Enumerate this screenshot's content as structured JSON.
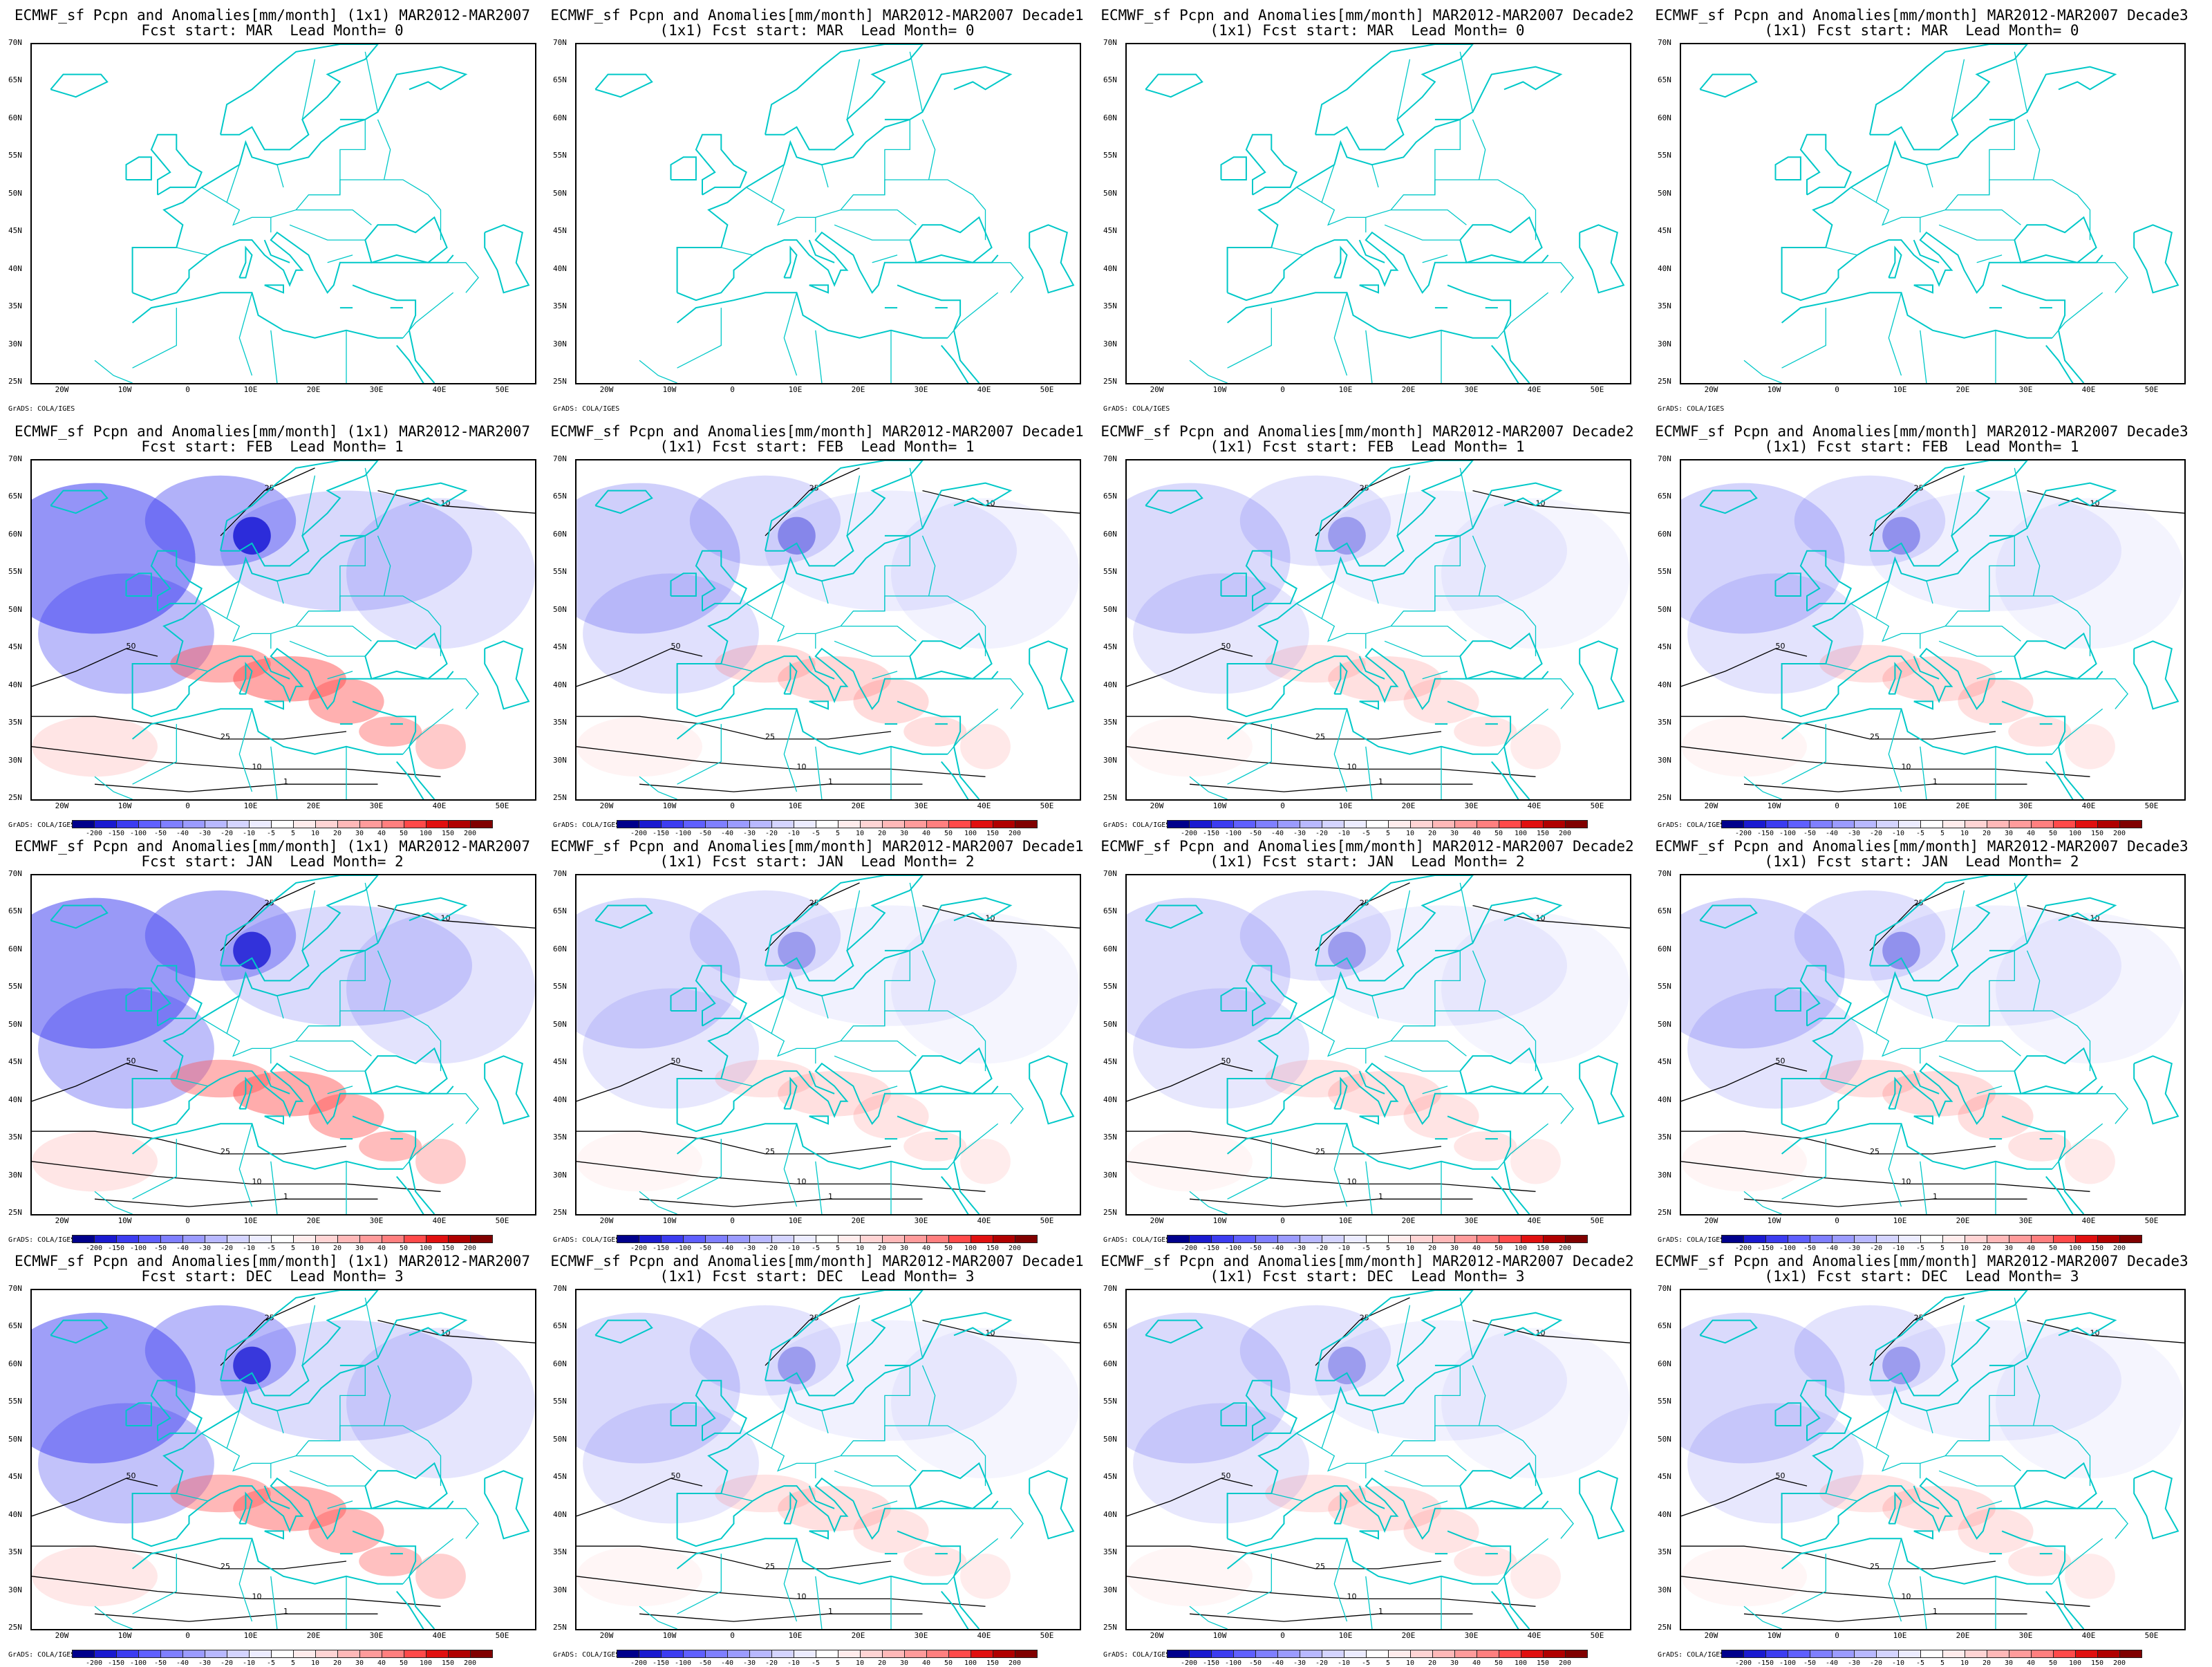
{
  "rows": [
    {
      "panels": [
        {
          "title1": "ECMWF_sf Pcpn and Anomalies[mm/month] (1x1) MAR2012-MAR2007",
          "title2": "Fcst start: MAR  Lead Month= 0",
          "intensity": 0
        },
        {
          "title1": "ECMWF_sf Pcpn and Anomalies[mm/month] MAR2012-MAR2007 Decade1",
          "title2": "(1x1) Fcst start: MAR  Lead Month= 0",
          "intensity": 0
        },
        {
          "title1": "ECMWF_sf Pcpn and Anomalies[mm/month] MAR2012-MAR2007 Decade2",
          "title2": "(1x1) Fcst start: MAR  Lead Month= 0",
          "intensity": 0
        },
        {
          "title1": "ECMWF_sf Pcpn and Anomalies[mm/month] MAR2012-MAR2007 Decade3",
          "title2": "(1x1) Fcst start: MAR  Lead Month= 0",
          "intensity": 0
        }
      ],
      "show_colorbar": false
    },
    {
      "panels": [
        {
          "title1": "ECMWF_sf Pcpn and Anomalies[mm/month] (1x1) MAR2012-MAR2007",
          "title2": "Fcst start: FEB  Lead Month= 1",
          "intensity": 1.0
        },
        {
          "title1": "ECMWF_sf Pcpn and Anomalies[mm/month] MAR2012-MAR2007 Decade1",
          "title2": "(1x1) Fcst start: FEB  Lead Month= 1",
          "intensity": 0.45
        },
        {
          "title1": "ECMWF_sf Pcpn and Anomalies[mm/month] MAR2012-MAR2007 Decade2",
          "title2": "(1x1) Fcst start: FEB  Lead Month= 1",
          "intensity": 0.35
        },
        {
          "title1": "ECMWF_sf Pcpn and Anomalies[mm/month] MAR2012-MAR2007 Decade3",
          "title2": "(1x1) Fcst start: FEB  Lead Month= 1",
          "intensity": 0.4
        }
      ],
      "show_colorbar": true
    },
    {
      "panels": [
        {
          "title1": "ECMWF_sf Pcpn and Anomalies[mm/month] (1x1) MAR2012-MAR2007",
          "title2": "Fcst start: JAN  Lead Month= 2",
          "intensity": 0.95
        },
        {
          "title1": "ECMWF_sf Pcpn and Anomalies[mm/month] MAR2012-MAR2007 Decade1",
          "title2": "(1x1) Fcst start: JAN  Lead Month= 2",
          "intensity": 0.35
        },
        {
          "title1": "ECMWF_sf Pcpn and Anomalies[mm/month] MAR2012-MAR2007 Decade2",
          "title2": "(1x1) Fcst start: JAN  Lead Month= 2",
          "intensity": 0.35
        },
        {
          "title1": "ECMWF_sf Pcpn and Anomalies[mm/month] MAR2012-MAR2007 Decade3",
          "title2": "(1x1) Fcst start: JAN  Lead Month= 2",
          "intensity": 0.4
        }
      ],
      "show_colorbar": true
    },
    {
      "panels": [
        {
          "title1": "ECMWF_sf Pcpn and Anomalies[mm/month] (1x1) MAR2012-MAR2007",
          "title2": "Fcst start: DEC  Lead Month= 3",
          "intensity": 0.9
        },
        {
          "title1": "ECMWF_sf Pcpn and Anomalies[mm/month] MAR2012-MAR2007 Decade1",
          "title2": "(1x1) Fcst start: DEC  Lead Month= 3",
          "intensity": 0.35
        },
        {
          "title1": "ECMWF_sf Pcpn and Anomalies[mm/month] MAR2012-MAR2007 Decade2",
          "title2": "(1x1) Fcst start: DEC  Lead Month= 3",
          "intensity": 0.35
        },
        {
          "title1": "ECMWF_sf Pcpn and Anomalies[mm/month] MAR2012-MAR2007 Decade3",
          "title2": "(1x1) Fcst start: DEC  Lead Month= 3",
          "intensity": 0.35
        }
      ],
      "show_colorbar": true
    }
  ],
  "lat_labels": [
    "70N",
    "65N",
    "60N",
    "55N",
    "50N",
    "45N",
    "40N",
    "35N",
    "30N",
    "25N"
  ],
  "lon_labels": [
    "20W",
    "10W",
    "0",
    "10E",
    "20E",
    "30E",
    "40E",
    "50E"
  ],
  "credit": "GrADS: COLA/IGES",
  "colorbar_ticks": [
    "-200",
    "-150",
    "-100",
    "-50",
    "-40",
    "-30",
    "-20",
    "-10",
    "-5",
    "5",
    "10",
    "20",
    "30",
    "40",
    "50",
    "100",
    "150",
    "200"
  ],
  "colorbar_colors": [
    "#00008b",
    "#1a1ad0",
    "#3c3cf0",
    "#5f5fff",
    "#7f7fff",
    "#9b9bff",
    "#b8b8ff",
    "#d4d4ff",
    "#ececff",
    "#ffffff",
    "#ffecec",
    "#ffd4d4",
    "#ffb8b8",
    "#ff9b9b",
    "#ff7f7f",
    "#ff4a4a",
    "#e01010",
    "#b00000",
    "#800000"
  ],
  "colors": {
    "coast": "#00c8c8",
    "contour": "#000000",
    "neg": "#3c3cf0",
    "pos": "#ff5050"
  }
}
